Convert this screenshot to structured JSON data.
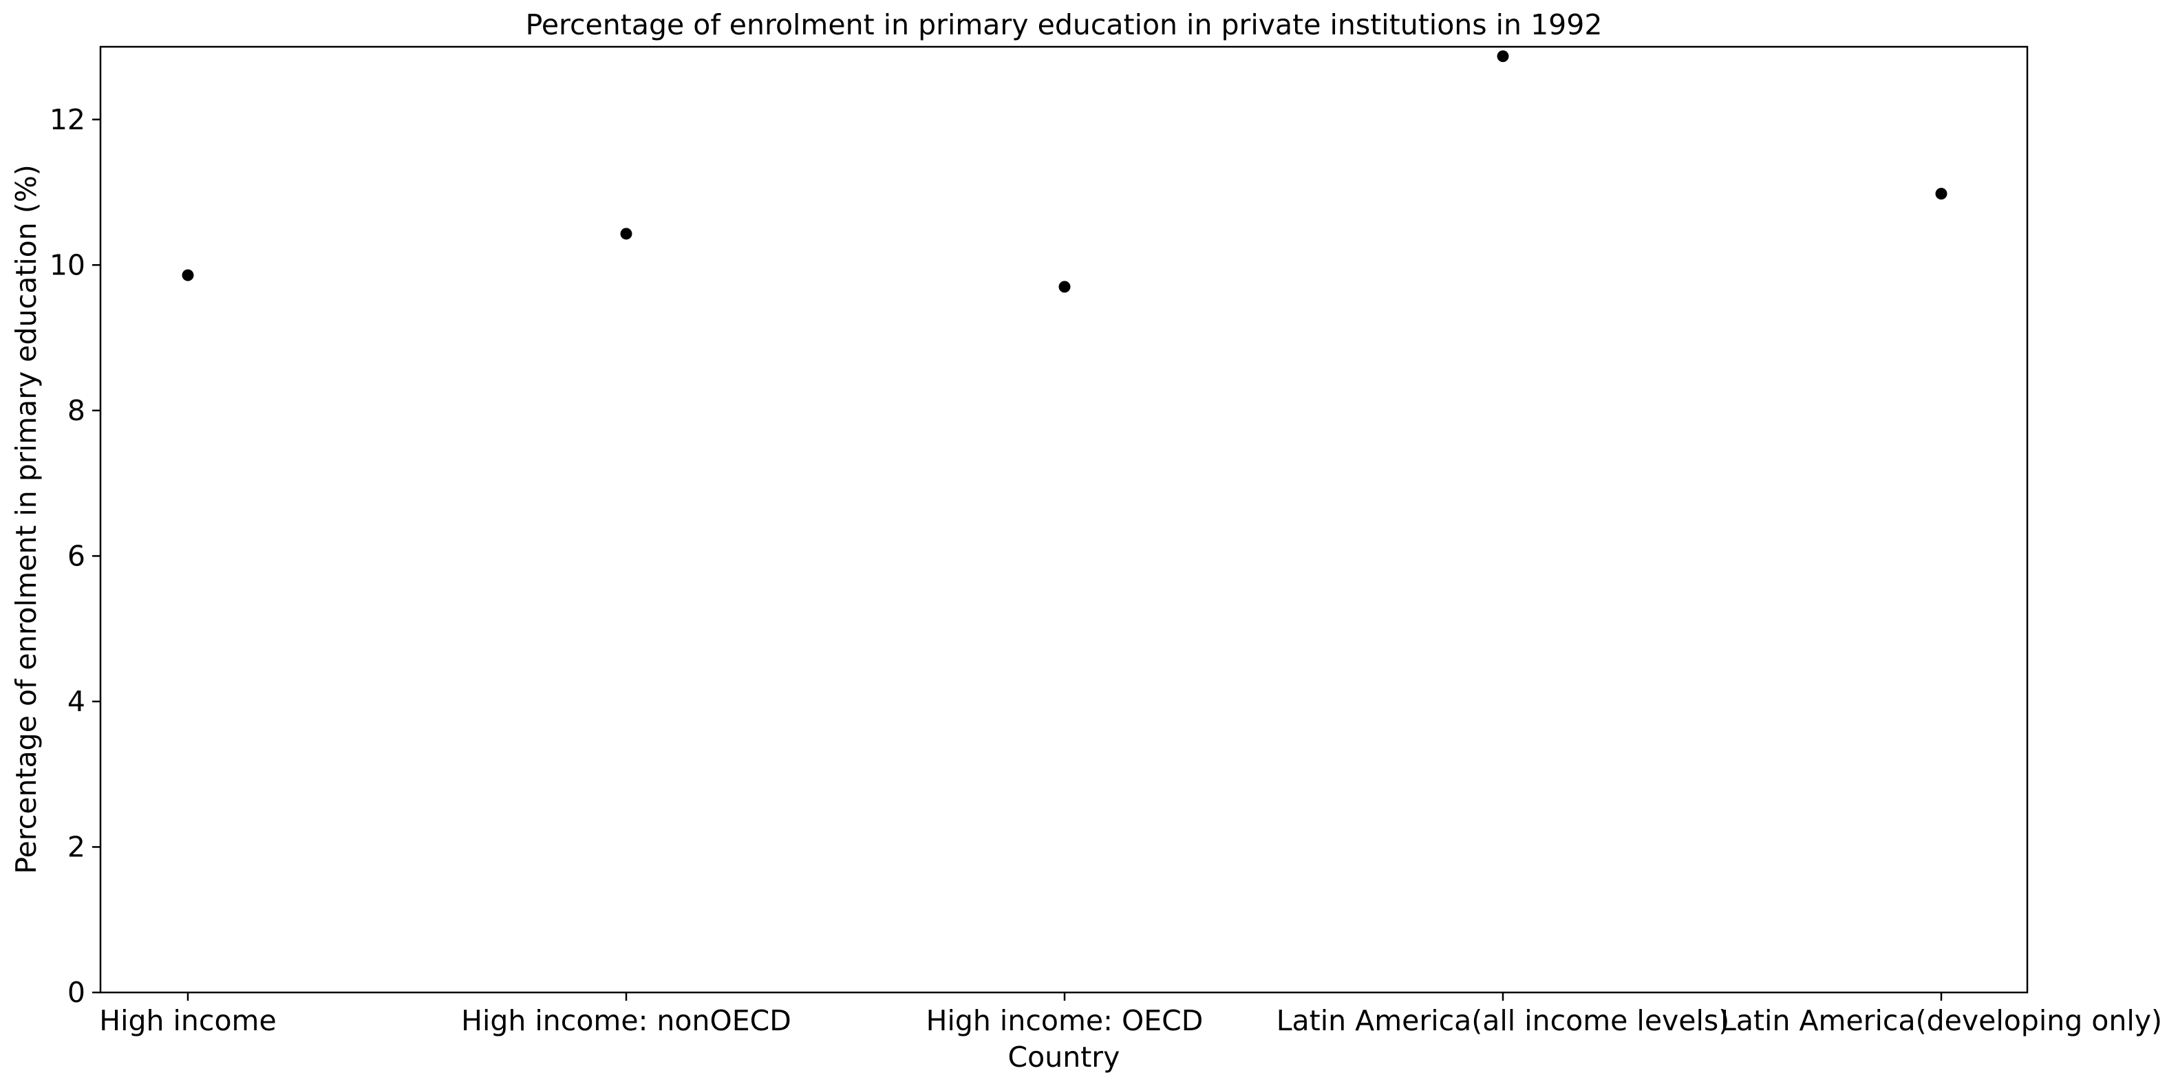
{
  "chart_data": {
    "type": "scatter",
    "title": "Percentage of enrolment in primary education in private institutions in 1992",
    "xlabel": "Country",
    "ylabel": "Percentage of enrolment in primary education (%)",
    "categories": [
      "High income",
      "High income: nonOECD",
      "High income: OECD",
      "Latin America(all income levels)",
      "Latin America(developing only)"
    ],
    "values": [
      9.86,
      10.43,
      9.7,
      12.87,
      10.98
    ],
    "ylim": [
      0,
      13.0
    ],
    "yticks": [
      0,
      2,
      4,
      6,
      8,
      10,
      12
    ],
    "grid": false,
    "marker_color": "#000000"
  }
}
